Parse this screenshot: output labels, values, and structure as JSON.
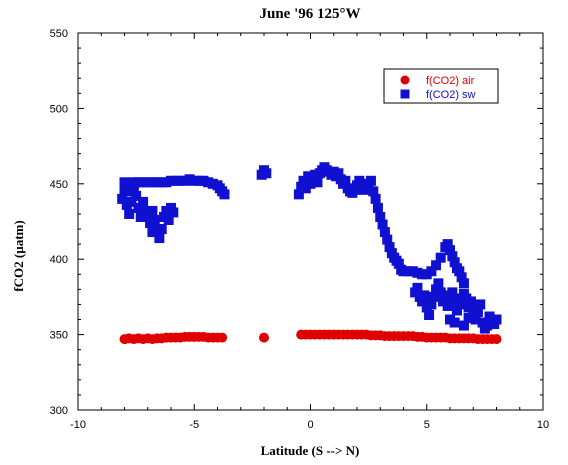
{
  "chart_data": {
    "type": "scatter",
    "title": "June '96 125°W",
    "xlabel": "Latitude (S --> N)",
    "ylabel": "fCO2 (µatm)",
    "xlim": [
      -10,
      10
    ],
    "ylim": [
      300,
      550
    ],
    "xticks": [
      "-10",
      "-5",
      "0",
      "5",
      "10"
    ],
    "yticks": [
      "300",
      "350",
      "400",
      "450",
      "500",
      "550"
    ],
    "grid": false,
    "legend_position": "top-right",
    "series": [
      {
        "name": "f(CO2) air",
        "marker": "circle",
        "color": "#e00000",
        "points": [
          [
            -8.0,
            347
          ],
          [
            -7.8,
            347.5
          ],
          [
            -7.6,
            347
          ],
          [
            -7.4,
            347.5
          ],
          [
            -7.2,
            347
          ],
          [
            -7.0,
            347.5
          ],
          [
            -6.8,
            347
          ],
          [
            -6.6,
            347.5
          ],
          [
            -6.4,
            347.5
          ],
          [
            -6.2,
            348
          ],
          [
            -6.0,
            348
          ],
          [
            -5.8,
            348
          ],
          [
            -5.6,
            348
          ],
          [
            -5.4,
            348.5
          ],
          [
            -5.2,
            348.5
          ],
          [
            -5.0,
            348.5
          ],
          [
            -4.8,
            348.5
          ],
          [
            -4.6,
            348.5
          ],
          [
            -4.4,
            348
          ],
          [
            -4.2,
            348
          ],
          [
            -4.0,
            348
          ],
          [
            -3.8,
            348
          ],
          [
            -2.0,
            348
          ],
          [
            -0.4,
            350
          ],
          [
            -0.2,
            350
          ],
          [
            0.0,
            350
          ],
          [
            0.2,
            350
          ],
          [
            0.4,
            350
          ],
          [
            0.6,
            350
          ],
          [
            0.8,
            350
          ],
          [
            1.0,
            350
          ],
          [
            1.2,
            350
          ],
          [
            1.4,
            350
          ],
          [
            1.6,
            350
          ],
          [
            1.8,
            350
          ],
          [
            2.0,
            350
          ],
          [
            2.2,
            350
          ],
          [
            2.4,
            350
          ],
          [
            2.6,
            349.5
          ],
          [
            2.8,
            349.5
          ],
          [
            3.0,
            349.5
          ],
          [
            3.2,
            349
          ],
          [
            3.4,
            349
          ],
          [
            3.6,
            349
          ],
          [
            3.8,
            349
          ],
          [
            4.0,
            349
          ],
          [
            4.2,
            349
          ],
          [
            4.4,
            349
          ],
          [
            4.6,
            348.5
          ],
          [
            4.8,
            348.5
          ],
          [
            5.0,
            348
          ],
          [
            5.2,
            348
          ],
          [
            5.4,
            348
          ],
          [
            5.6,
            348
          ],
          [
            5.8,
            348
          ],
          [
            6.0,
            347.5
          ],
          [
            6.2,
            347.5
          ],
          [
            6.4,
            347.5
          ],
          [
            6.6,
            347.5
          ],
          [
            6.8,
            347.5
          ],
          [
            7.0,
            347.5
          ],
          [
            7.2,
            347
          ],
          [
            7.4,
            347
          ],
          [
            7.6,
            347
          ],
          [
            7.8,
            347
          ],
          [
            8.0,
            347
          ]
        ]
      },
      {
        "name": "f(CO2) sw",
        "marker": "square",
        "color": "#1010d0",
        "points": [
          [
            -8.1,
            440
          ],
          [
            -8.0,
            446
          ],
          [
            -8.0,
            451
          ],
          [
            -7.9,
            436
          ],
          [
            -7.8,
            430
          ],
          [
            -7.8,
            445
          ],
          [
            -7.7,
            438
          ],
          [
            -7.6,
            447
          ],
          [
            -7.6,
            451
          ],
          [
            -7.5,
            442
          ],
          [
            -7.4,
            434
          ],
          [
            -7.3,
            428
          ],
          [
            -7.2,
            438
          ],
          [
            -7.1,
            432
          ],
          [
            -7.0,
            428
          ],
          [
            -6.9,
            424
          ],
          [
            -6.8,
            432
          ],
          [
            -6.8,
            418
          ],
          [
            -6.7,
            426
          ],
          [
            -6.6,
            420
          ],
          [
            -6.5,
            414
          ],
          [
            -6.4,
            420
          ],
          [
            -6.3,
            428
          ],
          [
            -6.2,
            432
          ],
          [
            -6.1,
            426
          ],
          [
            -6.0,
            434
          ],
          [
            -5.9,
            431
          ],
          [
            -7.6,
            450
          ],
          [
            -7.4,
            451
          ],
          [
            -7.2,
            451
          ],
          [
            -7.0,
            451
          ],
          [
            -6.8,
            451
          ],
          [
            -6.6,
            451
          ],
          [
            -6.4,
            451
          ],
          [
            -6.2,
            451
          ],
          [
            -6.0,
            452
          ],
          [
            -5.8,
            452
          ],
          [
            -5.6,
            452
          ],
          [
            -5.4,
            452
          ],
          [
            -5.2,
            453
          ],
          [
            -5.0,
            452
          ],
          [
            -4.8,
            452
          ],
          [
            -4.6,
            452
          ],
          [
            -4.4,
            451
          ],
          [
            -4.2,
            450
          ],
          [
            -4.0,
            449
          ],
          [
            -3.9,
            447
          ],
          [
            -3.8,
            445
          ],
          [
            -3.7,
            443
          ],
          [
            -2.1,
            456
          ],
          [
            -2.0,
            459
          ],
          [
            -1.9,
            457
          ],
          [
            -0.5,
            443
          ],
          [
            -0.4,
            448
          ],
          [
            -0.3,
            452
          ],
          [
            -0.2,
            447
          ],
          [
            -0.1,
            455
          ],
          [
            0.0,
            450
          ],
          [
            0.1,
            453
          ],
          [
            0.2,
            456
          ],
          [
            0.3,
            451
          ],
          [
            0.4,
            457
          ],
          [
            0.5,
            459
          ],
          [
            0.6,
            461
          ],
          [
            0.7,
            459
          ],
          [
            0.8,
            458
          ],
          [
            0.9,
            456
          ],
          [
            1.0,
            458
          ],
          [
            1.1,
            455
          ],
          [
            1.2,
            457
          ],
          [
            1.3,
            453
          ],
          [
            1.4,
            450
          ],
          [
            1.5,
            452
          ],
          [
            1.6,
            447
          ],
          [
            1.7,
            445
          ],
          [
            1.8,
            444
          ],
          [
            1.9,
            446
          ],
          [
            2.0,
            449
          ],
          [
            2.1,
            452
          ],
          [
            2.2,
            448
          ],
          [
            2.3,
            446
          ],
          [
            2.4,
            450
          ],
          [
            2.5,
            447
          ],
          [
            2.6,
            452
          ],
          [
            2.7,
            445
          ],
          [
            2.8,
            440
          ],
          [
            2.9,
            434
          ],
          [
            3.0,
            428
          ],
          [
            3.1,
            423
          ],
          [
            3.2,
            418
          ],
          [
            3.3,
            413
          ],
          [
            3.4,
            408
          ],
          [
            3.5,
            404
          ],
          [
            3.6,
            401
          ],
          [
            3.7,
            399
          ],
          [
            3.8,
            397
          ],
          [
            3.9,
            393
          ],
          [
            4.0,
            392
          ],
          [
            4.2,
            392
          ],
          [
            4.4,
            392
          ],
          [
            4.6,
            391
          ],
          [
            4.8,
            390
          ],
          [
            5.0,
            390
          ],
          [
            5.2,
            392
          ],
          [
            5.4,
            396
          ],
          [
            5.6,
            401
          ],
          [
            5.8,
            408
          ],
          [
            5.9,
            410
          ],
          [
            6.0,
            406
          ],
          [
            6.1,
            402
          ],
          [
            6.2,
            398
          ],
          [
            6.3,
            394
          ],
          [
            6.4,
            392
          ],
          [
            6.5,
            388
          ],
          [
            6.6,
            384
          ],
          [
            4.5,
            378
          ],
          [
            4.6,
            381
          ],
          [
            4.7,
            375
          ],
          [
            4.8,
            372
          ],
          [
            4.9,
            376
          ],
          [
            5.0,
            368
          ],
          [
            5.1,
            363
          ],
          [
            5.2,
            370
          ],
          [
            5.3,
            375
          ],
          [
            5.4,
            380
          ],
          [
            5.5,
            384
          ],
          [
            5.6,
            378
          ],
          [
            5.7,
            372
          ],
          [
            5.8,
            376
          ],
          [
            5.9,
            369
          ],
          [
            6.0,
            374
          ],
          [
            6.1,
            378
          ],
          [
            6.2,
            372
          ],
          [
            6.3,
            366
          ],
          [
            6.4,
            370
          ],
          [
            6.5,
            374
          ],
          [
            6.6,
            377
          ],
          [
            6.7,
            374
          ],
          [
            6.8,
            368
          ],
          [
            6.9,
            372
          ],
          [
            7.0,
            366
          ],
          [
            7.1,
            360
          ],
          [
            7.2,
            365
          ],
          [
            7.3,
            370
          ],
          [
            7.4,
            358
          ],
          [
            7.5,
            354
          ],
          [
            7.6,
            356
          ],
          [
            7.7,
            362
          ],
          [
            7.8,
            360
          ],
          [
            7.9,
            357
          ],
          [
            8.0,
            360
          ],
          [
            6.0,
            360
          ],
          [
            6.2,
            358
          ],
          [
            6.6,
            356
          ],
          [
            6.8,
            361
          ]
        ]
      }
    ]
  }
}
